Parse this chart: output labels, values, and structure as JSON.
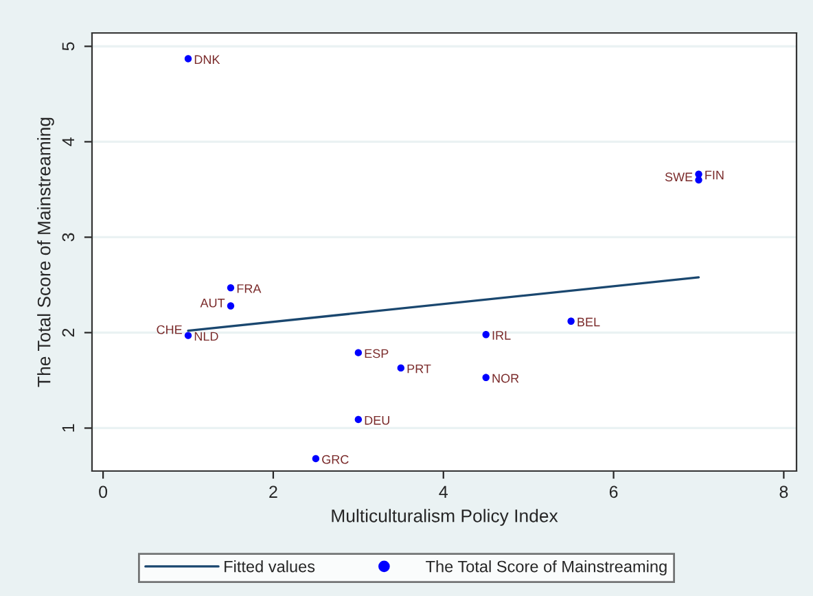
{
  "chart_data": {
    "type": "scatter",
    "xlabel": "Multiculturalism Policy Index",
    "ylabel": "The Total Score of Mainstreaming",
    "xlim": [
      -0.13,
      8.15
    ],
    "ylim": [
      0.55,
      5.14
    ],
    "xticks": [
      0,
      2,
      4,
      6,
      8
    ],
    "yticks": [
      1,
      2,
      3,
      4,
      5
    ],
    "grid": "y",
    "legend": "bottom",
    "series": [
      {
        "name": "Fitted values",
        "type": "line",
        "color": "#1a476f",
        "x": [
          1,
          7
        ],
        "values": [
          2.02,
          2.58
        ]
      },
      {
        "name": "The Total Score of Mainstreaming",
        "marker": "circle",
        "color": "#0000ff",
        "x": [
          1,
          7,
          7,
          1.5,
          1.5,
          1,
          3,
          3.5,
          4.5,
          4.5,
          5.5,
          3,
          2.5
        ],
        "values": [
          4.87,
          3.66,
          3.6,
          2.47,
          2.28,
          1.97,
          1.79,
          1.63,
          1.98,
          1.53,
          2.12,
          1.09,
          0.68
        ]
      }
    ],
    "annotations": [
      {
        "text": "DNK",
        "x": 1,
        "y": 4.87
      },
      {
        "text": "FIN",
        "x": 7,
        "y": 3.66
      },
      {
        "text": "SWE",
        "x": 7,
        "y": 3.6
      },
      {
        "text": "FRA",
        "x": 1.5,
        "y": 2.47
      },
      {
        "text": "AUT",
        "x": 1.5,
        "y": 2.28
      },
      {
        "text": "NLD",
        "x": 1,
        "y": 1.97
      },
      {
        "text": "CHE",
        "x": 1,
        "y": 2.0
      },
      {
        "text": "ESP",
        "x": 3,
        "y": 1.79
      },
      {
        "text": "PRT",
        "x": 3.5,
        "y": 1.63
      },
      {
        "text": "IRL",
        "x": 4.5,
        "y": 1.98
      },
      {
        "text": "NOR",
        "x": 4.5,
        "y": 1.53
      },
      {
        "text": "BEL",
        "x": 5.5,
        "y": 2.12
      },
      {
        "text": "DEU",
        "x": 3,
        "y": 1.09
      },
      {
        "text": "GRC",
        "x": 2.5,
        "y": 0.68
      }
    ]
  }
}
